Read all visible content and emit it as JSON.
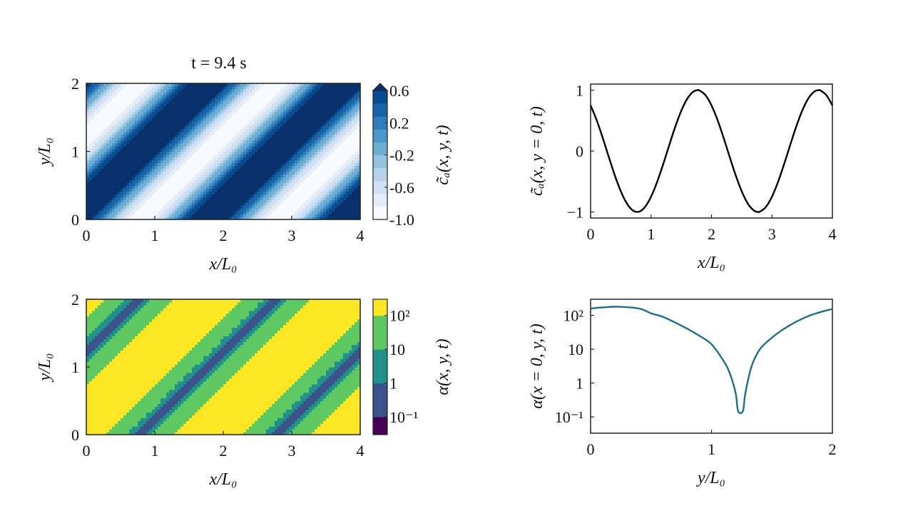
{
  "title": "t = 9.4 s",
  "chart_data": [
    {
      "type": "heatmap",
      "xlabel": "x/L₀",
      "ylabel": "y/L₀",
      "xlim": [
        0,
        4
      ],
      "ylim": [
        0,
        2
      ],
      "xticks": [
        {
          "v": 0,
          "t": "0"
        },
        {
          "v": 1,
          "t": "1"
        },
        {
          "v": 2,
          "t": "2"
        },
        {
          "v": 3,
          "t": "3"
        },
        {
          "v": 4,
          "t": "4"
        }
      ],
      "yticks": [
        {
          "v": 0,
          "t": "0"
        },
        {
          "v": 1,
          "t": "1"
        },
        {
          "v": 2,
          "t": "2"
        }
      ],
      "field_model": {
        "function": "cos",
        "period": 2,
        "peak_x_at_y0": 1.77,
        "stripe_direction": "x - y"
      },
      "colorbar": {
        "label": "c̃ₐ(x, y, t)",
        "range": [
          -1.0,
          0.6
        ],
        "extend": "max",
        "ticks": [
          {
            "v": 0.6,
            "t": "0.6"
          },
          {
            "v": 0.2,
            "t": "0.2"
          },
          {
            "v": -0.2,
            "t": "-0.2"
          },
          {
            "v": -0.6,
            "t": "-0.6"
          },
          {
            "v": -1.0,
            "t": "-1.0"
          }
        ],
        "levels": [
          -1.0,
          -0.84,
          -0.68,
          -0.52,
          -0.36,
          -0.2,
          -0.04,
          0.12,
          0.28,
          0.44,
          0.6
        ],
        "colors": [
          "#f7fbff",
          "#e3eef9",
          "#cfe1f2",
          "#b5d4e9",
          "#93c3df",
          "#6daed5",
          "#4b97c9",
          "#2f7ebc",
          "#1864aa",
          "#0a4a90"
        ],
        "extend_color": "#08306b"
      }
    },
    {
      "type": "line",
      "xlabel": "x/L₀",
      "ylabel": "c̃ₐ(x, y = 0, t)",
      "xlim": [
        0,
        4
      ],
      "ylim": [
        -1.1,
        1.1
      ],
      "xticks": [
        {
          "v": 0,
          "t": "0"
        },
        {
          "v": 1,
          "t": "1"
        },
        {
          "v": 2,
          "t": "2"
        },
        {
          "v": 3,
          "t": "3"
        },
        {
          "v": 4,
          "t": "4"
        }
      ],
      "yticks": [
        {
          "v": 1,
          "t": "1"
        },
        {
          "v": 0,
          "t": "0"
        },
        {
          "v": -1,
          "t": "−1"
        }
      ],
      "color": "#000000",
      "x": [
        0,
        0.1,
        0.2,
        0.3,
        0.4,
        0.5,
        0.6,
        0.7,
        0.8,
        0.9,
        1.0,
        1.1,
        1.2,
        1.3,
        1.4,
        1.5,
        1.6,
        1.7,
        1.77,
        1.8,
        1.9,
        2.0,
        2.1,
        2.2,
        2.3,
        2.4,
        2.5,
        2.6,
        2.7,
        2.77,
        2.8,
        2.9,
        3.0,
        3.1,
        3.2,
        3.3,
        3.4,
        3.5,
        3.6,
        3.7,
        3.77,
        3.8,
        3.9,
        4.0
      ],
      "y": [
        0.75,
        0.509,
        0.218,
        -0.094,
        -0.397,
        -0.661,
        -0.861,
        -0.976,
        -0.996,
        -0.918,
        -0.75,
        -0.509,
        -0.218,
        0.094,
        0.397,
        0.661,
        0.861,
        0.976,
        1.0,
        0.996,
        0.918,
        0.75,
        0.509,
        0.218,
        -0.094,
        -0.397,
        -0.661,
        -0.861,
        -0.976,
        -1.0,
        -0.996,
        -0.918,
        -0.75,
        -0.509,
        -0.218,
        0.094,
        0.397,
        0.661,
        0.861,
        0.976,
        1.0,
        0.996,
        0.918,
        0.75
      ]
    },
    {
      "type": "heatmap",
      "xlabel": "x/L₀",
      "ylabel": "y/L₀",
      "xlim": [
        0,
        4
      ],
      "ylim": [
        0,
        2
      ],
      "xticks": [
        {
          "v": 0,
          "t": "0"
        },
        {
          "v": 1,
          "t": "1"
        },
        {
          "v": 2,
          "t": "2"
        },
        {
          "v": 3,
          "t": "3"
        },
        {
          "v": 4,
          "t": "4"
        }
      ],
      "yticks": [
        {
          "v": 0,
          "t": "0"
        },
        {
          "v": 1,
          "t": "1"
        },
        {
          "v": 2,
          "t": "2"
        }
      ],
      "colorbar": {
        "label": "α(x, y, t)",
        "scale": "log",
        "range": [
          0.03,
          300
        ],
        "ticks": [
          {
            "v": 100,
            "t": "10²"
          },
          {
            "v": 10,
            "t": "10"
          },
          {
            "v": 1,
            "t": "1"
          },
          {
            "v": 0.1,
            "t": "10⁻¹"
          }
        ],
        "levels": [
          0.03,
          0.1,
          1,
          10,
          100,
          300
        ],
        "colors": [
          "#440154",
          "#3b528b",
          "#21918c",
          "#5ec962",
          "#fde725"
        ]
      }
    },
    {
      "type": "line",
      "xlabel": "y/L₀",
      "ylabel": "α(x = 0, y, t)",
      "yscale": "log",
      "xlim": [
        0,
        2
      ],
      "ylim": [
        0.033,
        300
      ],
      "xticks": [
        {
          "v": 0,
          "t": "0"
        },
        {
          "v": 1,
          "t": "1"
        },
        {
          "v": 2,
          "t": "2"
        }
      ],
      "yticks": [
        {
          "v": 100,
          "t": "10²"
        },
        {
          "v": 10,
          "t": "10"
        },
        {
          "v": 1,
          "t": "1"
        },
        {
          "v": 0.1,
          "t": "10⁻¹"
        }
      ],
      "color": "#1f6f8b",
      "x": [
        0,
        0.1,
        0.23,
        0.4,
        0.5,
        0.6,
        0.75,
        0.9,
        1.0,
        1.1,
        1.15,
        1.2,
        1.22,
        1.26,
        1.28,
        1.33,
        1.4,
        1.5,
        1.6,
        1.7,
        1.8,
        1.9,
        2.0
      ],
      "y": [
        160,
        172,
        180,
        160,
        115,
        90,
        50,
        25,
        14,
        4.5,
        2,
        0.5,
        0.15,
        0.15,
        0.5,
        3,
        10,
        22,
        40,
        65,
        95,
        125,
        155
      ]
    }
  ]
}
